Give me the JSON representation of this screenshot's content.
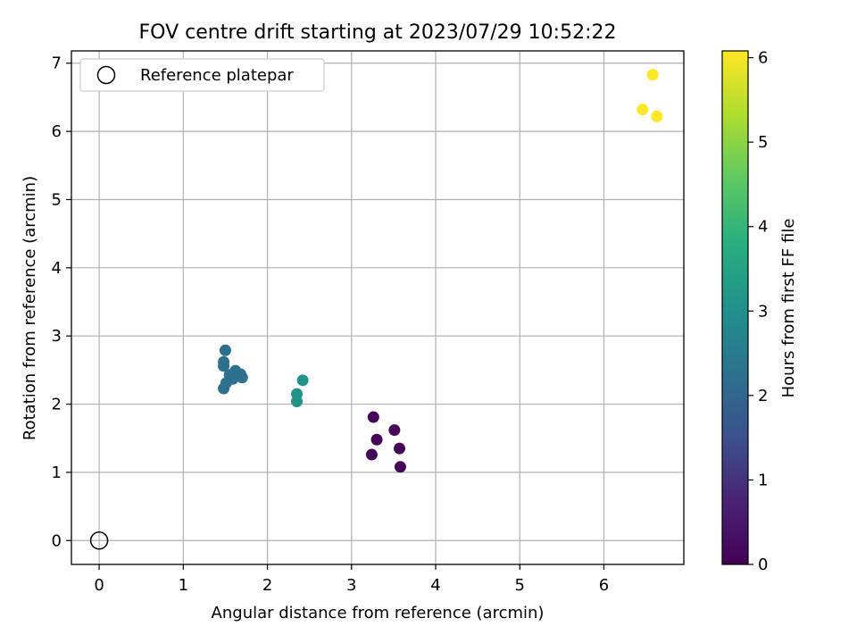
{
  "chart_data": {
    "type": "scatter",
    "title": "FOV centre drift starting at 2023/07/29 10:52:22",
    "xlabel": "Angular distance from reference (arcmin)",
    "ylabel": "Rotation from reference (arcmin)",
    "xlim": [
      -0.33,
      6.95
    ],
    "ylim": [
      -0.35,
      7.18
    ],
    "xticks": [
      0,
      1,
      2,
      3,
      4,
      5,
      6
    ],
    "yticks": [
      0,
      1,
      2,
      3,
      4,
      5,
      6,
      7
    ],
    "grid": true,
    "legend": {
      "placement": "top-left",
      "entries": [
        "Reference platepar"
      ]
    },
    "reference": {
      "name": "Reference platepar",
      "x": 0,
      "y": 0
    },
    "colorbar": {
      "label": "Hours from first FF file",
      "range": [
        0,
        6.08
      ],
      "ticks": [
        0,
        1,
        2,
        3,
        4,
        5,
        6
      ],
      "colormap": "viridis"
    },
    "points": [
      {
        "x": 3.26,
        "y": 1.81,
        "c": 0.1
      },
      {
        "x": 3.51,
        "y": 1.62,
        "c": 0.1
      },
      {
        "x": 3.3,
        "y": 1.48,
        "c": 0.1
      },
      {
        "x": 3.57,
        "y": 1.35,
        "c": 0.1
      },
      {
        "x": 3.24,
        "y": 1.26,
        "c": 0.1
      },
      {
        "x": 3.58,
        "y": 1.08,
        "c": 0.1
      },
      {
        "x": 1.5,
        "y": 2.79,
        "c": 2.2
      },
      {
        "x": 1.48,
        "y": 2.62,
        "c": 2.2
      },
      {
        "x": 1.48,
        "y": 2.56,
        "c": 2.2
      },
      {
        "x": 1.62,
        "y": 2.49,
        "c": 2.25
      },
      {
        "x": 1.68,
        "y": 2.44,
        "c": 2.25
      },
      {
        "x": 1.55,
        "y": 2.43,
        "c": 2.25
      },
      {
        "x": 1.59,
        "y": 2.37,
        "c": 2.25
      },
      {
        "x": 1.7,
        "y": 2.39,
        "c": 2.25
      },
      {
        "x": 1.51,
        "y": 2.31,
        "c": 2.25
      },
      {
        "x": 1.48,
        "y": 2.23,
        "c": 2.25
      },
      {
        "x": 2.42,
        "y": 2.35,
        "c": 3.1
      },
      {
        "x": 2.35,
        "y": 2.15,
        "c": 3.1
      },
      {
        "x": 2.35,
        "y": 2.04,
        "c": 3.1
      },
      {
        "x": 6.58,
        "y": 6.83,
        "c": 6.05
      },
      {
        "x": 6.46,
        "y": 6.32,
        "c": 6.05
      },
      {
        "x": 6.63,
        "y": 6.22,
        "c": 6.05
      }
    ]
  }
}
